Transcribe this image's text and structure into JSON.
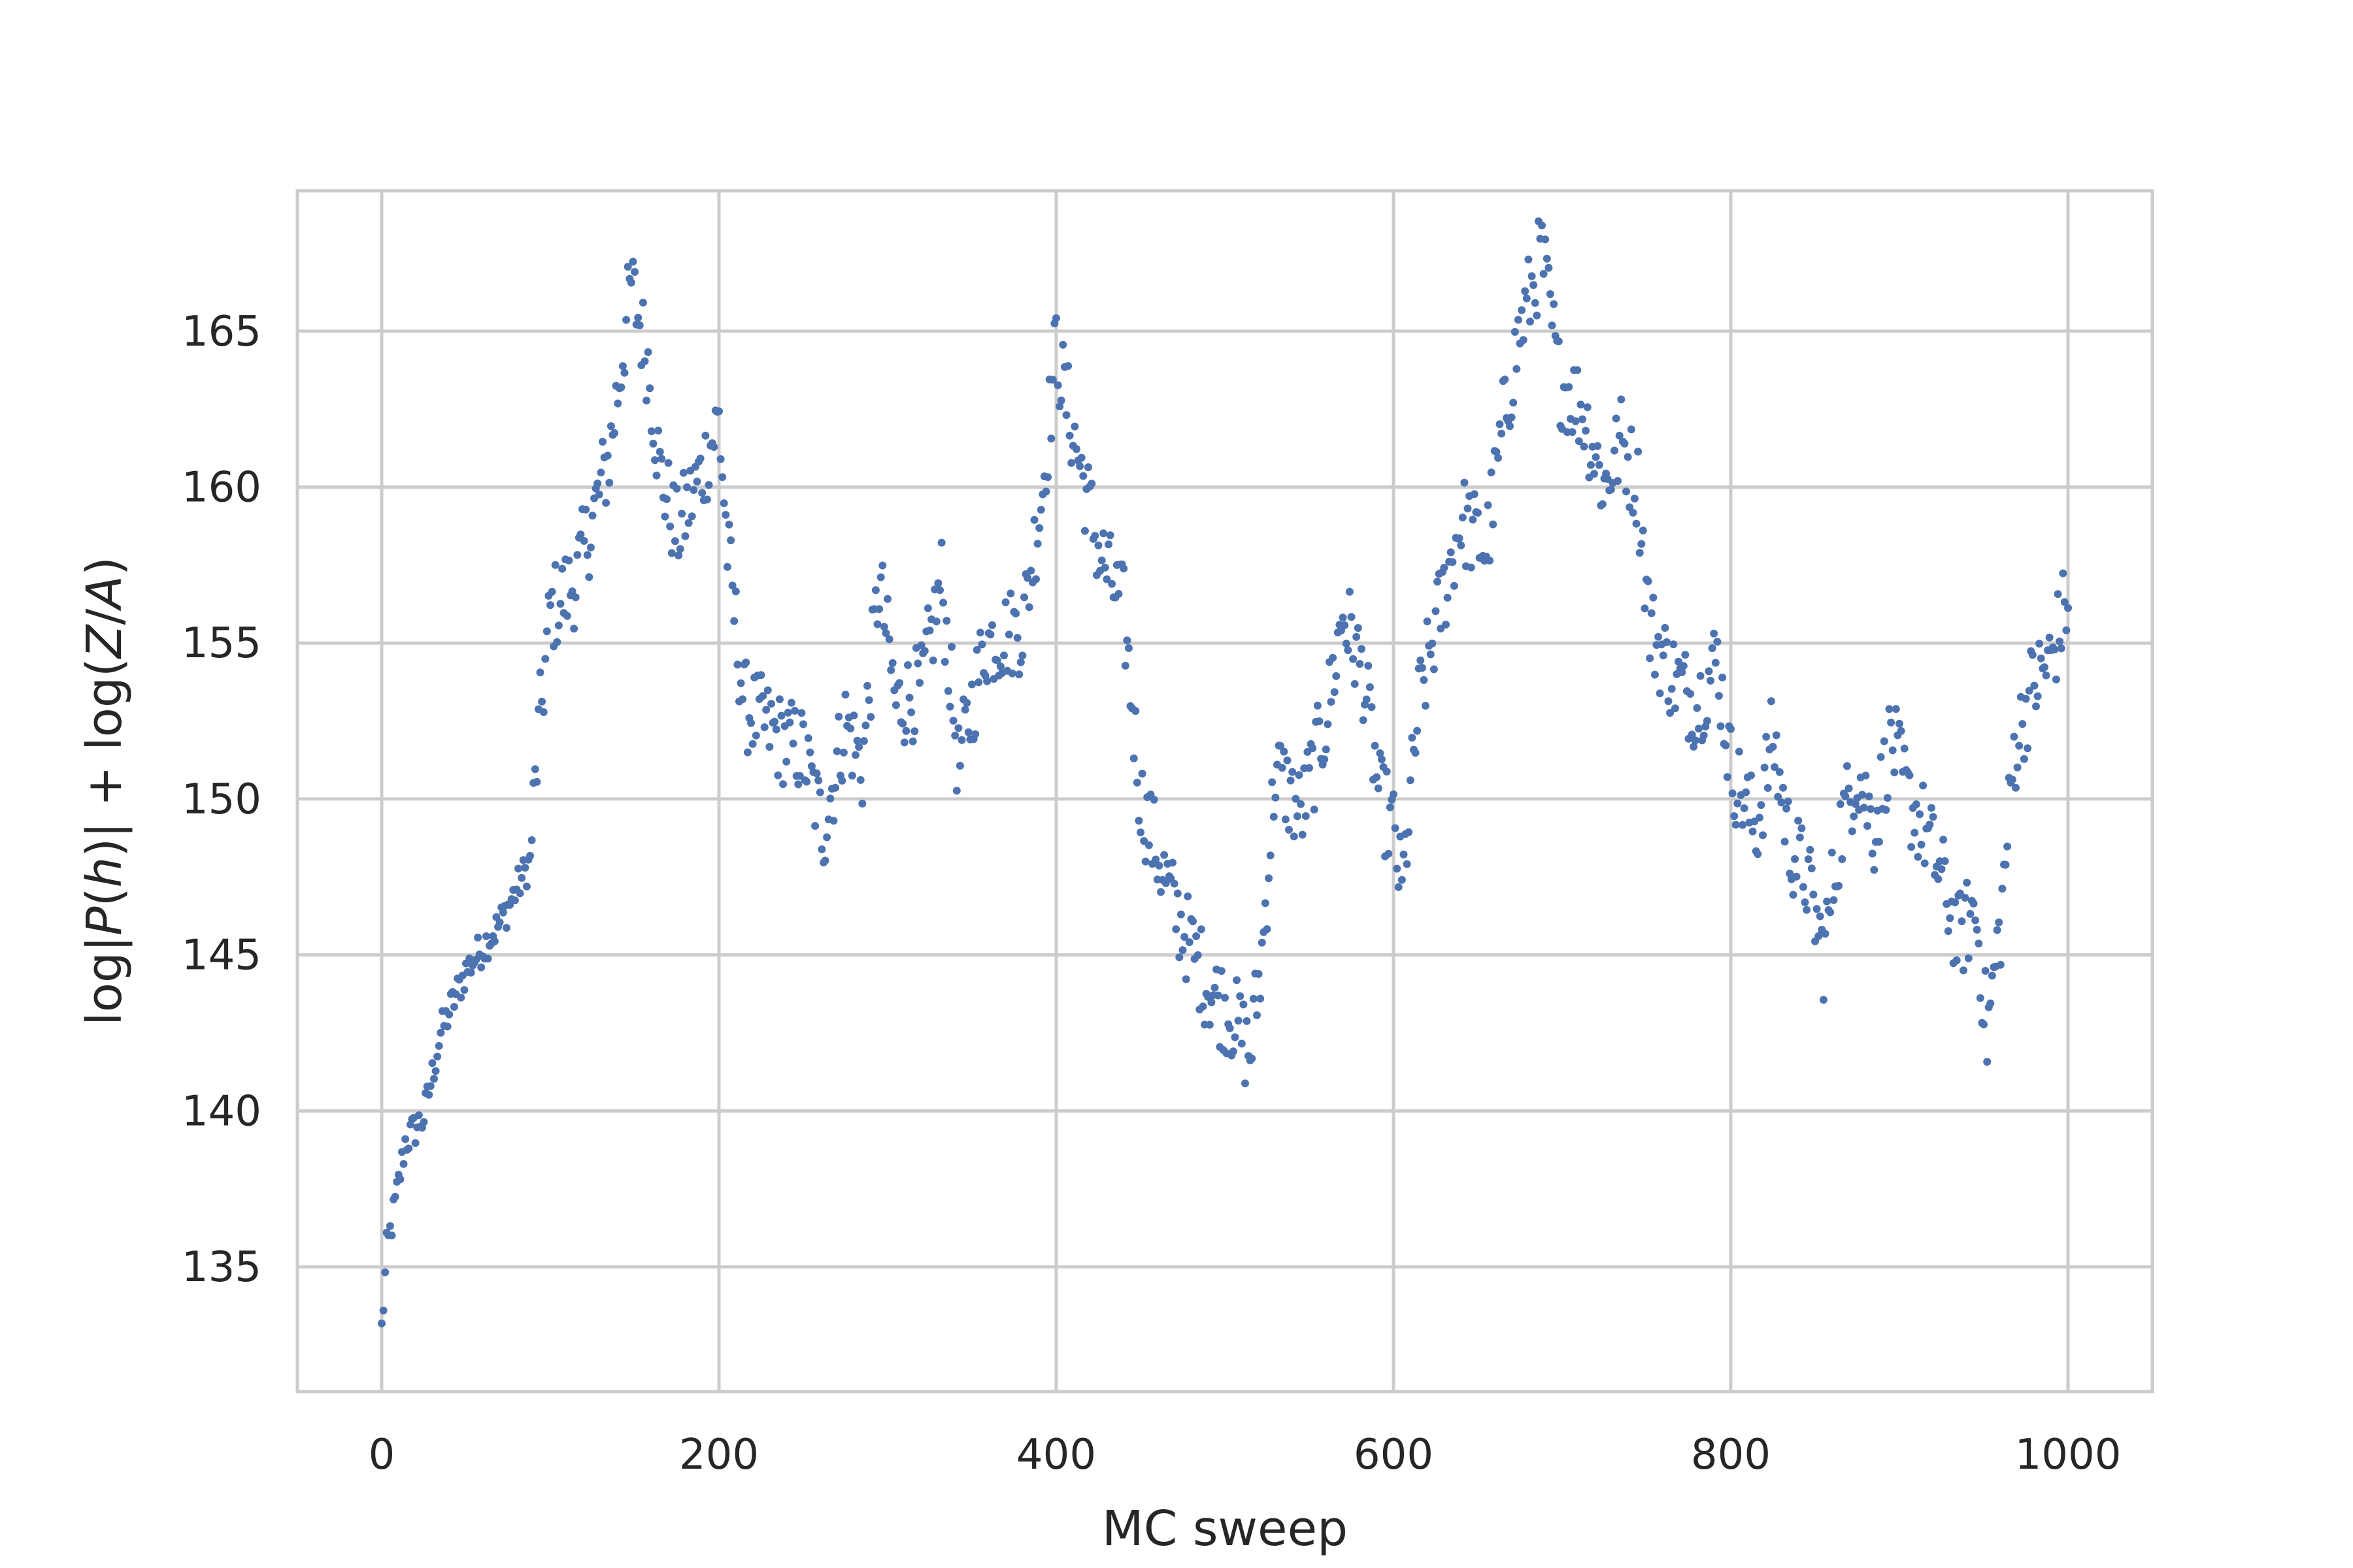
{
  "chart_data": {
    "type": "scatter",
    "title": "",
    "xlabel": "MC sweep",
    "ylabel_parts": {
      "a": "log|",
      "b": "P",
      "c": "(",
      "d": "h",
      "e": ")| + log(",
      "f": "Z",
      "g": "/",
      "h": "A",
      "i": ")"
    },
    "xlim": [
      -50,
      1050
    ],
    "ylim": [
      131,
      169.5
    ],
    "x_ticks": [
      {
        "value": 0,
        "label": "0"
      },
      {
        "value": 200,
        "label": "200"
      },
      {
        "value": 400,
        "label": "400"
      },
      {
        "value": 600,
        "label": "600"
      },
      {
        "value": 800,
        "label": "800"
      },
      {
        "value": 1000,
        "label": "1000"
      }
    ],
    "y_ticks": [
      {
        "value": 135,
        "label": "135"
      },
      {
        "value": 140,
        "label": "140"
      },
      {
        "value": 145,
        "label": "145"
      },
      {
        "value": 150,
        "label": "150"
      },
      {
        "value": 155,
        "label": "155"
      },
      {
        "value": 160,
        "label": "160"
      },
      {
        "value": 165,
        "label": "165"
      }
    ],
    "grid": true,
    "point_color": "#4c72b0",
    "series": [
      {
        "knots": [
          [
            0,
            133
          ],
          [
            3,
            135.5
          ],
          [
            8,
            137
          ],
          [
            14,
            139
          ],
          [
            25,
            139.8
          ],
          [
            35,
            142.5
          ],
          [
            50,
            144.5
          ],
          [
            70,
            146
          ],
          [
            88,
            148
          ],
          [
            93,
            152
          ],
          [
            100,
            156
          ],
          [
            115,
            157
          ],
          [
            125,
            159
          ],
          [
            135,
            161
          ],
          [
            148,
            166.5
          ],
          [
            158,
            164
          ],
          [
            165,
            160.5
          ],
          [
            175,
            158.5
          ],
          [
            190,
            160.5
          ],
          [
            200,
            162.2
          ],
          [
            205,
            158
          ],
          [
            215,
            153
          ],
          [
            235,
            152
          ],
          [
            250,
            151.5
          ],
          [
            262,
            149
          ],
          [
            275,
            152.5
          ],
          [
            285,
            151
          ],
          [
            295,
            157
          ],
          [
            305,
            153
          ],
          [
            320,
            153.5
          ],
          [
            332,
            157
          ],
          [
            342,
            151
          ],
          [
            358,
            155
          ],
          [
            380,
            155.5
          ],
          [
            392,
            160
          ],
          [
            400,
            164.5
          ],
          [
            405,
            163
          ],
          [
            415,
            160.5
          ],
          [
            425,
            158
          ],
          [
            440,
            156
          ],
          [
            450,
            150
          ],
          [
            470,
            146.5
          ],
          [
            490,
            144
          ],
          [
            505,
            143
          ],
          [
            515,
            141.8
          ],
          [
            522,
            145
          ],
          [
            530,
            151
          ],
          [
            545,
            149.5
          ],
          [
            560,
            152.5
          ],
          [
            570,
            156
          ],
          [
            582,
            154
          ],
          [
            592,
            150
          ],
          [
            600,
            149
          ],
          [
            605,
            147
          ],
          [
            615,
            153
          ],
          [
            625,
            155.5
          ],
          [
            640,
            159
          ],
          [
            655,
            158
          ],
          [
            665,
            162
          ],
          [
            675,
            165
          ],
          [
            688,
            167.5
          ],
          [
            698,
            163.5
          ],
          [
            712,
            162.5
          ],
          [
            725,
            160
          ],
          [
            735,
            161.5
          ],
          [
            745,
            160
          ],
          [
            752,
            155.5
          ],
          [
            765,
            154
          ],
          [
            780,
            153
          ],
          [
            792,
            154.5
          ],
          [
            800,
            151
          ],
          [
            815,
            149
          ],
          [
            825,
            152
          ],
          [
            835,
            148.5
          ],
          [
            845,
            147.5
          ],
          [
            855,
            145
          ],
          [
            865,
            149
          ],
          [
            875,
            151
          ],
          [
            885,
            149
          ],
          [
            895,
            152
          ],
          [
            905,
            150
          ],
          [
            915,
            149
          ],
          [
            925,
            147.5
          ],
          [
            935,
            145.5
          ],
          [
            945,
            146.5
          ],
          [
            952,
            142.5
          ],
          [
            960,
            146
          ],
          [
            968,
            151.5
          ],
          [
            978,
            153.5
          ],
          [
            990,
            154.5
          ],
          [
            1000,
            156.5
          ]
        ]
      }
    ]
  }
}
